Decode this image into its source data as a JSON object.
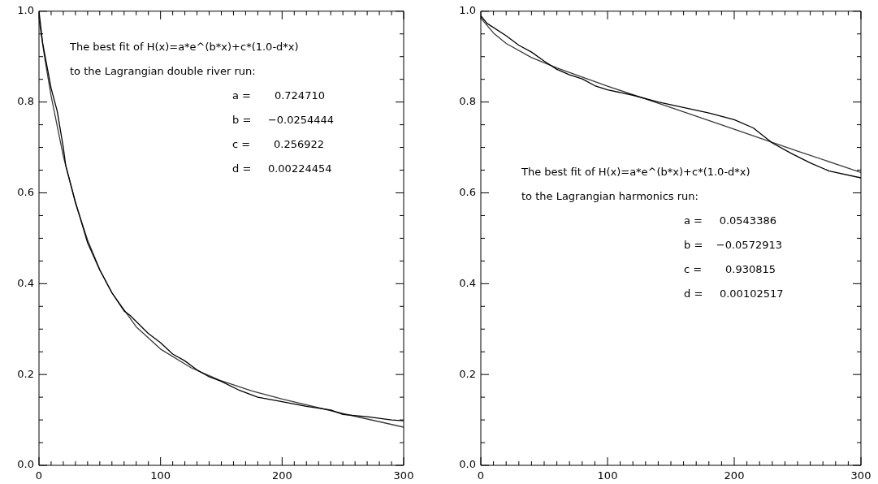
{
  "chart_data": [
    {
      "type": "line",
      "xlim": [
        0,
        300
      ],
      "ylim": [
        0,
        1
      ],
      "xticks": [
        0,
        {
          "value": 10,
          "label": null
        },
        {
          "value": 20,
          "label": null
        },
        {
          "value": 30,
          "label": null
        },
        {
          "value": 40,
          "label": null
        },
        {
          "value": 50,
          "label": null
        },
        {
          "value": 60,
          "label": null
        },
        {
          "value": 70,
          "label": null
        },
        {
          "value": 80,
          "label": null
        },
        {
          "value": 90,
          "label": null
        },
        100,
        {
          "value": 110,
          "label": null
        },
        {
          "value": 120,
          "label": null
        },
        {
          "value": 130,
          "label": null
        },
        {
          "value": 140,
          "label": null
        },
        {
          "value": 150,
          "label": null
        },
        {
          "value": 160,
          "label": null
        },
        {
          "value": 170,
          "label": null
        },
        {
          "value": 180,
          "label": null
        },
        {
          "value": 190,
          "label": null
        },
        200,
        {
          "value": 210,
          "label": null
        },
        {
          "value": 220,
          "label": null
        },
        {
          "value": 230,
          "label": null
        },
        {
          "value": 240,
          "label": null
        },
        {
          "value": 250,
          "label": null
        },
        {
          "value": 260,
          "label": null
        },
        {
          "value": 270,
          "label": null
        },
        {
          "value": 280,
          "label": null
        },
        {
          "value": 290,
          "label": null
        },
        300
      ],
      "yticks": [
        {
          "value": 0,
          "label": "0.0"
        },
        {
          "value": 0.05,
          "label": null
        },
        {
          "value": 0.1,
          "label": null
        },
        {
          "value": 0.15,
          "label": null
        },
        {
          "value": 0.2,
          "label": "0.2"
        },
        {
          "value": 0.25,
          "label": null
        },
        {
          "value": 0.3,
          "label": null
        },
        {
          "value": 0.35,
          "label": null
        },
        {
          "value": 0.4,
          "label": "0.4"
        },
        {
          "value": 0.45,
          "label": null
        },
        {
          "value": 0.5,
          "label": null
        },
        {
          "value": 0.55,
          "label": null
        },
        {
          "value": 0.6,
          "label": "0.6"
        },
        {
          "value": 0.65,
          "label": null
        },
        {
          "value": 0.7,
          "label": null
        },
        {
          "value": 0.75,
          "label": null
        },
        {
          "value": 0.8,
          "label": "0.8"
        },
        {
          "value": 0.85,
          "label": null
        },
        {
          "value": 0.9,
          "label": null
        },
        {
          "value": 0.95,
          "label": null
        },
        {
          "value": 1,
          "label": "1.0"
        }
      ],
      "grid": false,
      "legend": false,
      "marker": "none",
      "line_style": "solid",
      "annotations": [
        "The best fit of H(x)=a*e^(b*x)+c*(1.0-d*x)",
        "to the Lagrangian double river run:",
        "a =       0.724710",
        "b =     −0.0254444",
        "c =       0.256922",
        "d =     0.00224454"
      ],
      "series": [
        {
          "color": "#000000",
          "x": [
            0,
            3,
            10,
            15,
            20,
            22,
            30,
            40,
            50,
            60,
            70,
            75,
            90,
            100,
            110,
            120,
            130,
            140,
            150,
            165,
            180,
            200,
            220,
            240,
            250,
            270,
            290,
            300
          ],
          "values": [
            1.0,
            0.93,
            0.83,
            0.78,
            0.7,
            0.66,
            0.58,
            0.49,
            0.43,
            0.38,
            0.34,
            0.33,
            0.29,
            0.27,
            0.245,
            0.23,
            0.21,
            0.195,
            0.185,
            0.165,
            0.15,
            0.14,
            0.13,
            0.122,
            0.112,
            0.107,
            0.1,
            0.098
          ]
        },
        {
          "color": "#3a3a3a",
          "x": [
            0,
            5,
            10,
            20,
            30,
            40,
            50,
            60,
            80,
            100,
            125,
            150,
            175,
            200,
            250,
            300
          ],
          "values": [
            0.982,
            0.892,
            0.813,
            0.681,
            0.577,
            0.496,
            0.431,
            0.38,
            0.305,
            0.256,
            0.215,
            0.186,
            0.164,
            0.146,
            0.114,
            0.084
          ]
        }
      ]
    },
    {
      "type": "line",
      "xlim": [
        0,
        300
      ],
      "ylim": [
        0,
        1
      ],
      "xticks": [
        0,
        {
          "value": 10,
          "label": null
        },
        {
          "value": 20,
          "label": null
        },
        {
          "value": 30,
          "label": null
        },
        {
          "value": 40,
          "label": null
        },
        {
          "value": 50,
          "label": null
        },
        {
          "value": 60,
          "label": null
        },
        {
          "value": 70,
          "label": null
        },
        {
          "value": 80,
          "label": null
        },
        {
          "value": 90,
          "label": null
        },
        100,
        {
          "value": 110,
          "label": null
        },
        {
          "value": 120,
          "label": null
        },
        {
          "value": 130,
          "label": null
        },
        {
          "value": 140,
          "label": null
        },
        {
          "value": 150,
          "label": null
        },
        {
          "value": 160,
          "label": null
        },
        {
          "value": 170,
          "label": null
        },
        {
          "value": 180,
          "label": null
        },
        {
          "value": 190,
          "label": null
        },
        200,
        {
          "value": 210,
          "label": null
        },
        {
          "value": 220,
          "label": null
        },
        {
          "value": 230,
          "label": null
        },
        {
          "value": 240,
          "label": null
        },
        {
          "value": 250,
          "label": null
        },
        {
          "value": 260,
          "label": null
        },
        {
          "value": 270,
          "label": null
        },
        {
          "value": 280,
          "label": null
        },
        {
          "value": 290,
          "label": null
        },
        300
      ],
      "yticks": [
        {
          "value": 0,
          "label": "0.0"
        },
        {
          "value": 0.05,
          "label": null
        },
        {
          "value": 0.1,
          "label": null
        },
        {
          "value": 0.15,
          "label": null
        },
        {
          "value": 0.2,
          "label": "0.2"
        },
        {
          "value": 0.25,
          "label": null
        },
        {
          "value": 0.3,
          "label": null
        },
        {
          "value": 0.35,
          "label": null
        },
        {
          "value": 0.4,
          "label": "0.4"
        },
        {
          "value": 0.45,
          "label": null
        },
        {
          "value": 0.5,
          "label": null
        },
        {
          "value": 0.55,
          "label": null
        },
        {
          "value": 0.6,
          "label": "0.6"
        },
        {
          "value": 0.65,
          "label": null
        },
        {
          "value": 0.7,
          "label": null
        },
        {
          "value": 0.75,
          "label": null
        },
        {
          "value": 0.8,
          "label": "0.8"
        },
        {
          "value": 0.85,
          "label": null
        },
        {
          "value": 0.9,
          "label": null
        },
        {
          "value": 0.95,
          "label": null
        },
        {
          "value": 1,
          "label": "1.0"
        }
      ],
      "grid": false,
      "legend": false,
      "marker": "none",
      "line_style": "solid",
      "annotations": [
        "The best fit of H(x)=a*e^(b*x)+c*(1.0-d*x)",
        "to the Lagrangian harmonics run:",
        "a =     0.0543386",
        "b =    −0.0572913",
        "c =       0.930815",
        "d =     0.00102517"
      ],
      "series": [
        {
          "color": "#000000",
          "x": [
            0,
            5,
            20,
            30,
            40,
            50,
            60,
            70,
            80,
            90,
            100,
            120,
            140,
            160,
            180,
            200,
            215,
            230,
            245,
            260,
            275,
            300
          ],
          "values": [
            0.99,
            0.973,
            0.946,
            0.925,
            0.91,
            0.89,
            0.872,
            0.86,
            0.851,
            0.836,
            0.827,
            0.815,
            0.8,
            0.788,
            0.776,
            0.761,
            0.743,
            0.71,
            0.687,
            0.666,
            0.648,
            0.633
          ]
        },
        {
          "color": "#3a3a3a",
          "x": [
            0,
            10,
            20,
            40,
            60,
            100,
            150,
            200,
            250,
            300
          ],
          "values": [
            0.985,
            0.952,
            0.929,
            0.898,
            0.875,
            0.835,
            0.788,
            0.74,
            0.692,
            0.645
          ]
        }
      ]
    }
  ]
}
